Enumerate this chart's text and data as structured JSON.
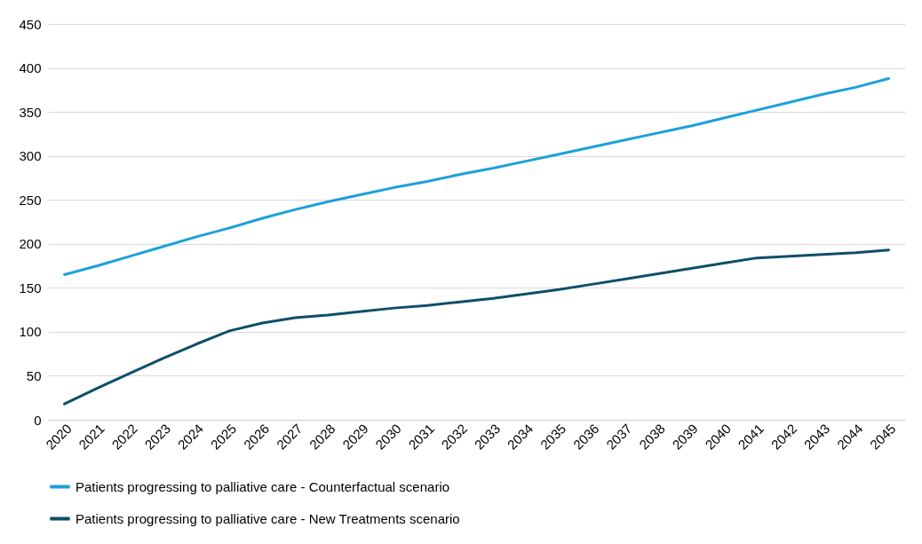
{
  "chart_data": {
    "type": "line",
    "categories": [
      "2020",
      "2021",
      "2022",
      "2023",
      "2024",
      "2025",
      "2026",
      "2027",
      "2028",
      "2029",
      "2030",
      "2031",
      "2032",
      "2033",
      "2034",
      "2035",
      "2036",
      "2037",
      "2038",
      "2039",
      "2040",
      "2041",
      "2042",
      "2043",
      "2044",
      "2045"
    ],
    "series": [
      {
        "name": "Patients progressing to palliative care - Counterfactual scenario",
        "color": "#1ba1db",
        "values": [
          165,
          175,
          186,
          197,
          208,
          218,
          229,
          239,
          248,
          256,
          264,
          271,
          279,
          286,
          294,
          302,
          310,
          318,
          326,
          334,
          343,
          352,
          361,
          370,
          378,
          388
        ]
      },
      {
        "name": "Patients progressing to palliative care - New Treatments scenario",
        "color": "#0e4f69",
        "values": [
          18,
          36,
          53,
          70,
          86,
          101,
          110,
          116,
          119,
          123,
          127,
          130,
          134,
          138,
          143,
          148,
          154,
          160,
          166,
          172,
          178,
          184,
          186,
          188,
          190,
          193
        ]
      }
    ],
    "ylim": [
      0,
      450
    ],
    "yticks": [
      0,
      50,
      100,
      150,
      200,
      250,
      300,
      350,
      400,
      450
    ],
    "grid": "y",
    "legend": "bottom",
    "marker": "none",
    "line_style": "solid"
  }
}
